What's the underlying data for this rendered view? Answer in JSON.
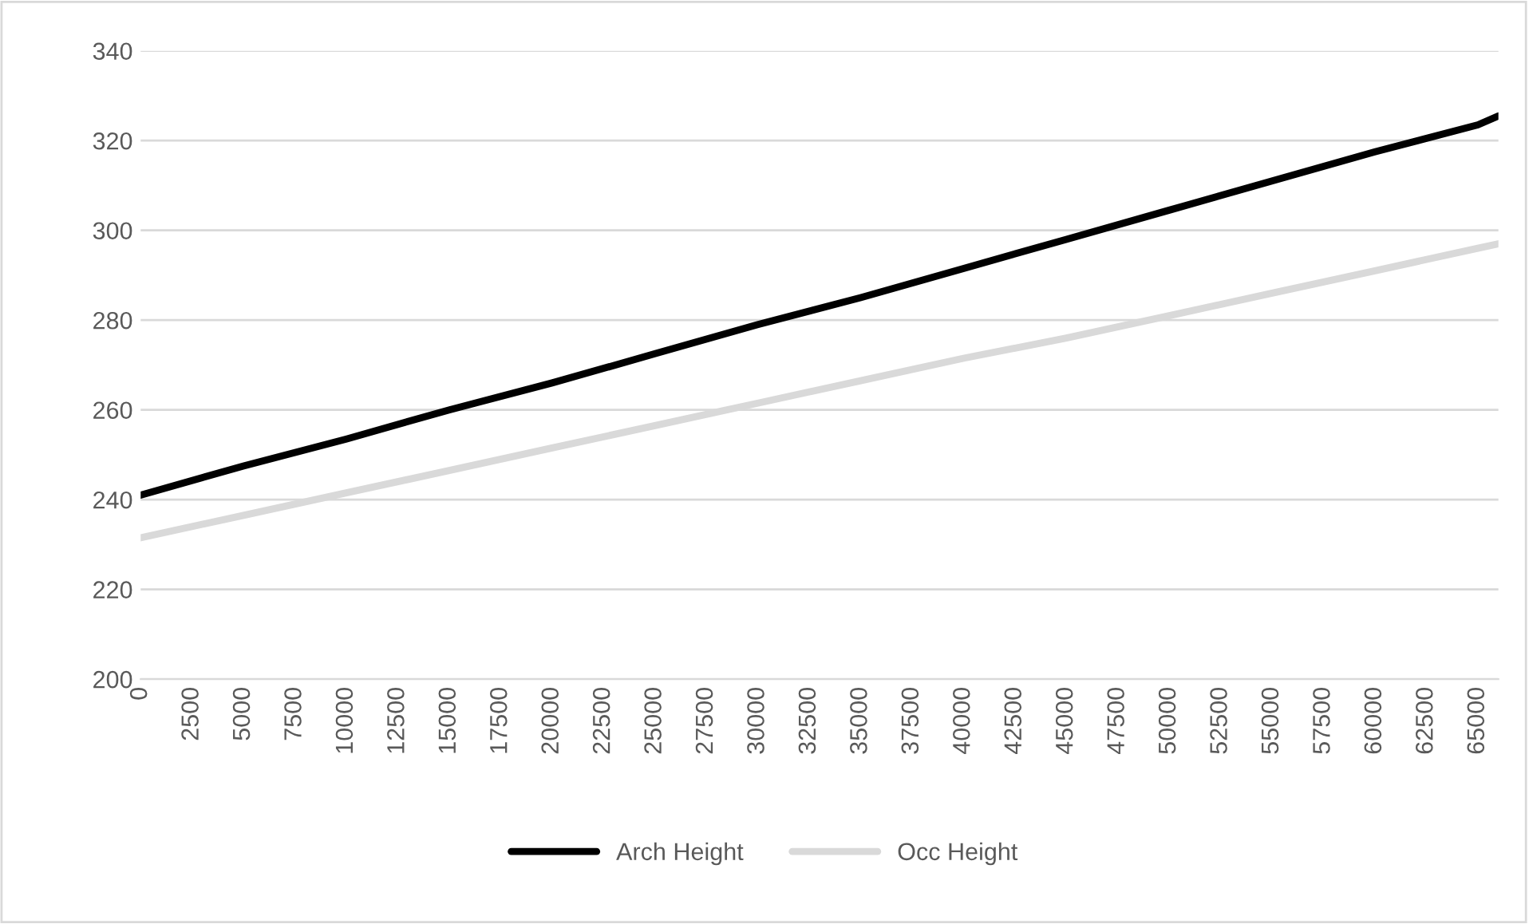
{
  "chart_data": {
    "type": "line",
    "x": [
      0,
      5000,
      10000,
      15000,
      20000,
      25000,
      30000,
      35000,
      40000,
      45000,
      50000,
      55000,
      60000,
      65000,
      66000
    ],
    "series": [
      {
        "name": "Arch Height",
        "color": "#000000",
        "values": [
          241,
          247.5,
          253.5,
          260,
          266,
          272.5,
          279,
          285,
          291.5,
          298,
          304.5,
          311,
          317.5,
          323.5,
          325.5
        ]
      },
      {
        "name": "Occ Height",
        "color": "#d9d9d9",
        "values": [
          231.5,
          236.5,
          241.5,
          246.5,
          251.5,
          256.5,
          261.5,
          266.5,
          271.5,
          276,
          281,
          286,
          291,
          296,
          297
        ]
      }
    ],
    "xlim": [
      0,
      66000
    ],
    "xticks": [
      0,
      2500,
      5000,
      7500,
      10000,
      12500,
      15000,
      17500,
      20000,
      22500,
      25000,
      27500,
      30000,
      32500,
      35000,
      37500,
      40000,
      42500,
      45000,
      47500,
      50000,
      52500,
      55000,
      57500,
      60000,
      62500,
      65000
    ],
    "ylim": [
      200,
      340
    ],
    "yticks": [
      200,
      220,
      240,
      260,
      280,
      300,
      320,
      340
    ],
    "grid": "y",
    "legend": "bottom",
    "marker": "none",
    "line_style": "solid"
  }
}
